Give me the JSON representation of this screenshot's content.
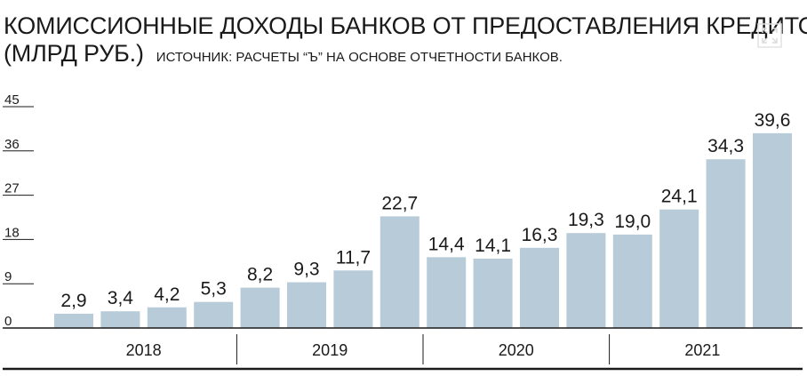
{
  "header": {
    "title": "КОМИССИОННЫЕ ДОХОДЫ БАНКОВ ОТ ПРЕДОСТАВЛЕНИЯ КРЕДИТОВ",
    "unit": "(МЛРД РУБ.)",
    "source": "ИСТОЧНИК: РАСЧЕТЫ “Ъ” НА ОСНОВЕ ОТЧЕТНОСТИ БАНКОВ."
  },
  "icons": {
    "expand": "expand-icon"
  },
  "colors": {
    "bar": "#b7ccd8",
    "text": "#1a1a1a",
    "axis": "#1a1a1a"
  },
  "chart_data": {
    "type": "bar",
    "title": "КОМИССИОННЫЕ ДОХОДЫ БАНКОВ ОТ ПРЕДОСТАВЛЕНИЯ КРЕДИТОВ",
    "ylabel": "",
    "xlabel": "",
    "ylim": [
      0,
      45
    ],
    "yticks": [
      "0",
      "9",
      "18",
      "27",
      "36",
      "45"
    ],
    "groups": [
      "2018",
      "2019",
      "2020",
      "2021"
    ],
    "bars_per_group": 4,
    "values": [
      2.9,
      3.4,
      4.2,
      5.3,
      8.2,
      9.3,
      11.7,
      22.7,
      14.4,
      14.1,
      16.3,
      19.3,
      19.0,
      24.1,
      34.3,
      39.6
    ],
    "labels": [
      "2,9",
      "3,4",
      "4,2",
      "5,3",
      "8,2",
      "9,3",
      "11,7",
      "22,7",
      "14,4",
      "14,1",
      "16,3",
      "19,3",
      "19,0",
      "24,1",
      "34,3",
      "39,6"
    ],
    "grid": false,
    "legend": "none"
  }
}
